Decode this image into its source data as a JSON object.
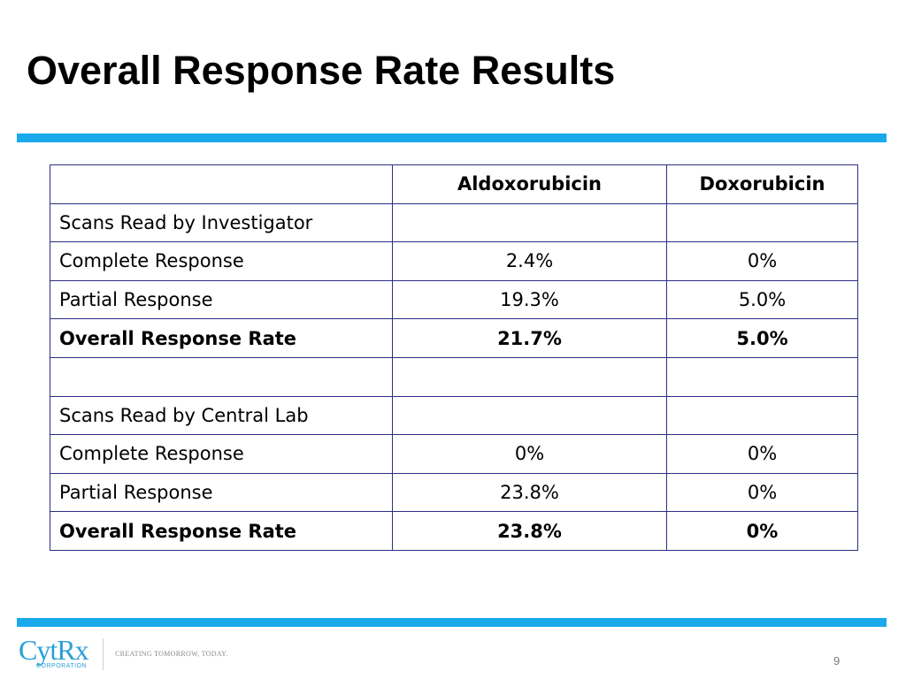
{
  "slide": {
    "title": "Overall Response Rate Results",
    "page_number": "9"
  },
  "table": {
    "headers": [
      "",
      "Aldoxorubicin",
      "Doxorubicin"
    ],
    "rows": [
      [
        "Scans Read by Investigator",
        "",
        ""
      ],
      [
        "Complete Response",
        "2.4%",
        "0%"
      ],
      [
        "Partial Response",
        "19.3%",
        "5.0%"
      ],
      [
        "Overall Response Rate",
        "21.7%",
        "5.0%"
      ],
      [
        "",
        "",
        ""
      ],
      [
        "Scans Read by Central Lab",
        "",
        ""
      ],
      [
        "Complete Response",
        "0%",
        "0%"
      ],
      [
        "Partial Response",
        "23.8%",
        "0%"
      ],
      [
        "Overall Response Rate",
        "23.8%",
        "0%"
      ]
    ]
  },
  "footer": {
    "logo_text": "CytRx",
    "logo_subtext": "CORPORATION",
    "tagline": "CREATING TOMORROW, TODAY."
  },
  "colors": {
    "accent_rule": "#1aaaeb",
    "table_border": "#2e2d84",
    "logo": "#2aa0d6"
  }
}
